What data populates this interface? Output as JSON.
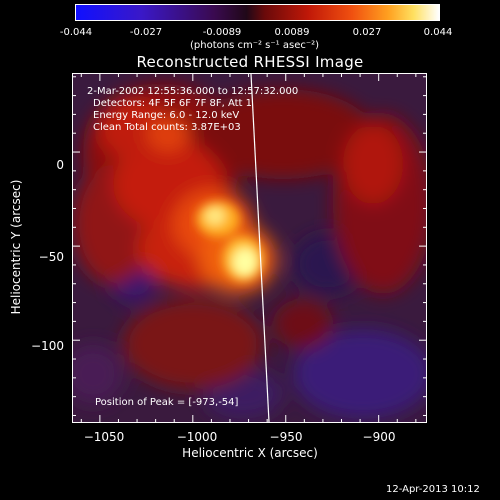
{
  "colorbar": {
    "tick_labels": [
      "-0.044",
      "-0.027",
      "-0.0089",
      "0.0089",
      "0.027",
      "0.044"
    ],
    "units_label": "(photons cm⁻² s⁻¹ asec⁻²)"
  },
  "title": "Reconstructed RHESSI Image",
  "info": {
    "time_range": "2-Mar-2002 12:55:36.000 to 12:57:32.000",
    "detectors": "Detectors: 4F 5F 6F 7F 8F, Att 1",
    "energy_range": "Energy Range: 6.0 - 12.0 keV",
    "clean": "Clean     Total counts: 3.87E+03",
    "peak_position": "Position of Peak = [-973,-54]"
  },
  "chart_data": {
    "type": "heatmap",
    "title": "Reconstructed RHESSI Image",
    "xlabel": "Heliocentric X (arcsec)",
    "ylabel": "Heliocentric Y (arcsec)",
    "xlim": [
      -1065,
      -874
    ],
    "ylim": [
      -144,
      42
    ],
    "x_ticks": [
      -1050,
      -1000,
      -950,
      -900
    ],
    "y_ticks": [
      0,
      -50,
      -100
    ],
    "x_tick_labels": [
      "−1050",
      "−1000",
      "−950",
      "−900"
    ],
    "y_tick_labels": [
      "0",
      "−50",
      "−100"
    ],
    "colorbar_range": [
      -0.044,
      0.044
    ],
    "peak": {
      "x": -973,
      "y": -54
    },
    "limb_line": [
      {
        "x": -962,
        "y": 42
      },
      {
        "x": -958,
        "y": -144
      }
    ],
    "grid": false
  },
  "footer": {
    "date": "12-Apr-2013 10:12"
  }
}
